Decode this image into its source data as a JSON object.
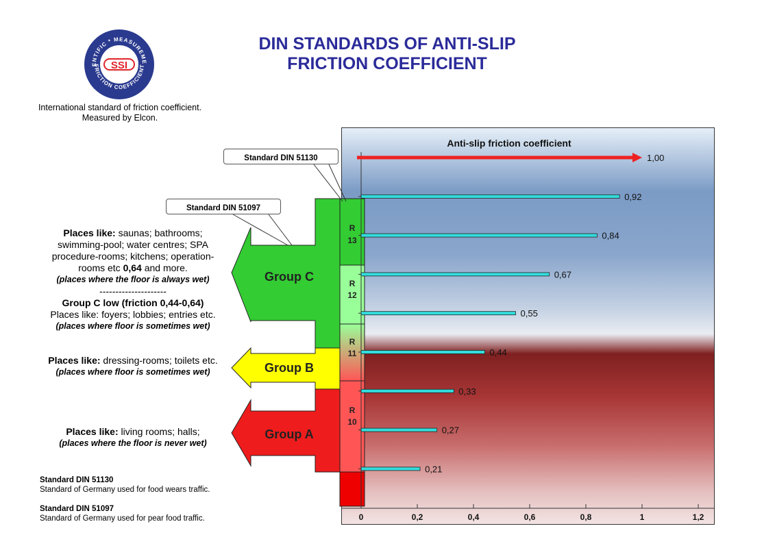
{
  "title": {
    "line1": "DIN STANDARDS OF ANTI-SLIP",
    "line2": "FRICTION COEFFICIENT"
  },
  "logo": {
    "text": "SSI",
    "ring_top": "SIENTIFIC * MEASUREMENT",
    "ring_bottom": "FRICTION COEFFICIENT",
    "color_ring": "#2a3a8f",
    "color_text": "#e0242a"
  },
  "intro": {
    "line1": "International standard of friction coefficient.",
    "line2": "Measured by Elcon."
  },
  "callouts": {
    "din51130": "Standard DIN 51130",
    "din51097": "Standard DIN 51097"
  },
  "groups": {
    "c": {
      "label": "Group C",
      "color": "#33cc33"
    },
    "b": {
      "label": "Group B",
      "color": "#ffff00"
    },
    "a": {
      "label": "Group A",
      "color": "#ee1c1c"
    }
  },
  "ratings": [
    {
      "r": "R",
      "n": "13",
      "color": "#33cc33"
    },
    {
      "r": "R",
      "n": "12",
      "color": "#99ff99"
    },
    {
      "r": "R",
      "n": "11",
      "color_top": "#99ff99",
      "color_bottom": "#ff5555"
    },
    {
      "r": "R",
      "n": "10",
      "color": "#ff5555"
    }
  ],
  "descriptions": {
    "c": {
      "lead": "Places like:",
      "text1": " saunas; bathrooms; swimming-pool; water centres; SPA procedure-rooms; kitchens; operation-rooms etc ",
      "value": "0,64",
      "text2": " and more.",
      "note1": "(places where the floor is always wet)",
      "divider": "---------------------",
      "low_title": "Group C low (friction 0,44-0,64)",
      "low_text": "Places like: foyers; lobbies; entries etc.",
      "note2": "(places where floor is sometimes wet)"
    },
    "b": {
      "lead": "Places like:",
      "text": " dressing-rooms; toilets etc.",
      "note": "(places where floor is sometimes wet)"
    },
    "a": {
      "lead": "Places like:",
      "text": " living rooms; halls;",
      "note": "(places where the floor is never wet)"
    }
  },
  "footnotes": {
    "din51130": {
      "title": "Standard DIN 51130",
      "text": "Standard of Germany used for food wears traffic."
    },
    "din51097": {
      "title": "Standard DIN 51097",
      "text": "Standard of Germany used for pear food traffic."
    }
  },
  "chart_data": {
    "type": "bar",
    "orientation": "horizontal",
    "title": "Anti-slip friction coefficient",
    "values": [
      1.0,
      0.92,
      0.84,
      0.67,
      0.55,
      0.44,
      0.33,
      0.27,
      0.21
    ],
    "value_labels": [
      "1,00",
      "0,92",
      "0,84",
      "0,67",
      "0,55",
      "0,44",
      "0,33",
      "0,27",
      "0,21"
    ],
    "highlight_index": 0,
    "xlim": [
      0,
      1.2
    ],
    "x_ticks": [
      0,
      0.2,
      0.4,
      0.6,
      0.8,
      1,
      1.2
    ],
    "x_tick_labels": [
      "0",
      "0,2",
      "0,4",
      "0,6",
      "0,8",
      "1",
      "1,2"
    ],
    "bar_color": "#33dddd",
    "highlight_color": "#ee2222",
    "grid": false
  }
}
